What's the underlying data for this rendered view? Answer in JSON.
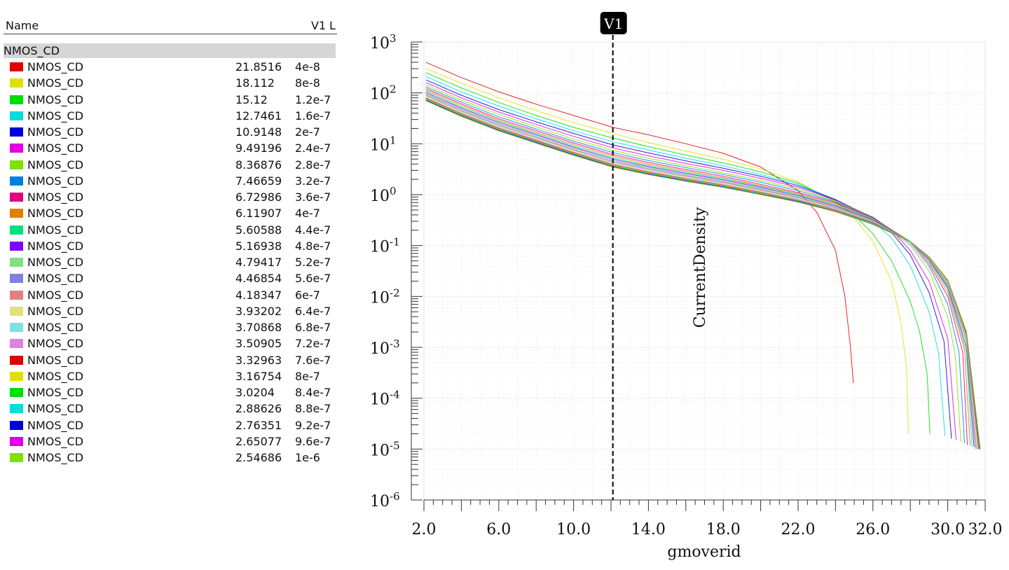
{
  "legend": {
    "header_name": "Name",
    "header_value": "V1",
    "header_l": "L",
    "group": "NMOS_CD",
    "rows": [
      {
        "name": "NMOS_CD",
        "value": "21.8516",
        "l": "4e-8",
        "color": "#e00000"
      },
      {
        "name": "NMOS_CD",
        "value": "18.112",
        "l": "8e-8",
        "color": "#e0e000"
      },
      {
        "name": "NMOS_CD",
        "value": "15.12",
        "l": "1.2e-7",
        "color": "#00dd00"
      },
      {
        "name": "NMOS_CD",
        "value": "12.7461",
        "l": "1.6e-7",
        "color": "#00dddd"
      },
      {
        "name": "NMOS_CD",
        "value": "10.9148",
        "l": "2e-7",
        "color": "#0000dd"
      },
      {
        "name": "NMOS_CD",
        "value": "9.49196",
        "l": "2.4e-7",
        "color": "#e000e0"
      },
      {
        "name": "NMOS_CD",
        "value": "8.36876",
        "l": "2.8e-7",
        "color": "#80e000"
      },
      {
        "name": "NMOS_CD",
        "value": "7.46659",
        "l": "3.2e-7",
        "color": "#0080e0"
      },
      {
        "name": "NMOS_CD",
        "value": "6.72986",
        "l": "3.6e-7",
        "color": "#e00080"
      },
      {
        "name": "NMOS_CD",
        "value": "6.11907",
        "l": "4e-7",
        "color": "#e08000"
      },
      {
        "name": "NMOS_CD",
        "value": "5.60588",
        "l": "4.4e-7",
        "color": "#00e080"
      },
      {
        "name": "NMOS_CD",
        "value": "5.16938",
        "l": "4.8e-7",
        "color": "#8000ff"
      },
      {
        "name": "NMOS_CD",
        "value": "4.79417",
        "l": "5.2e-7",
        "color": "#80e080"
      },
      {
        "name": "NMOS_CD",
        "value": "4.46854",
        "l": "5.6e-7",
        "color": "#8080e0"
      },
      {
        "name": "NMOS_CD",
        "value": "4.18347",
        "l": "6e-7",
        "color": "#e08080"
      },
      {
        "name": "NMOS_CD",
        "value": "3.93202",
        "l": "6.4e-7",
        "color": "#e0e080"
      },
      {
        "name": "NMOS_CD",
        "value": "3.70868",
        "l": "6.8e-7",
        "color": "#80e0e0"
      },
      {
        "name": "NMOS_CD",
        "value": "3.50905",
        "l": "7.2e-7",
        "color": "#e080e0"
      },
      {
        "name": "NMOS_CD",
        "value": "3.32963",
        "l": "7.6e-7",
        "color": "#e00000"
      },
      {
        "name": "NMOS_CD",
        "value": "3.16754",
        "l": "8e-7",
        "color": "#e0e000"
      },
      {
        "name": "NMOS_CD",
        "value": "3.0204",
        "l": "8.4e-7",
        "color": "#00dd00"
      },
      {
        "name": "NMOS_CD",
        "value": "2.88626",
        "l": "8.8e-7",
        "color": "#00dddd"
      },
      {
        "name": "NMOS_CD",
        "value": "2.76351",
        "l": "9.2e-7",
        "color": "#0000dd"
      },
      {
        "name": "NMOS_CD",
        "value": "2.65077",
        "l": "9.6e-7",
        "color": "#e000e0"
      },
      {
        "name": "NMOS_CD",
        "value": "2.54686",
        "l": "1e-6",
        "color": "#80e000"
      }
    ]
  },
  "chart_data": {
    "type": "line",
    "title": "",
    "xlabel": "gmoverid",
    "ylabel": "CurrentDensity",
    "xlim": [
      2.0,
      32.0
    ],
    "ylim": [
      1e-06,
      1000
    ],
    "yscale": "log",
    "grid": true,
    "x_ticks": [
      "2.0",
      "6.0",
      "10.0",
      "14.0",
      "18.0",
      "22.0",
      "26.0",
      "30.0",
      "32.0"
    ],
    "y_ticks": [
      {
        "base": "10",
        "exp": "3"
      },
      {
        "base": "10",
        "exp": "2"
      },
      {
        "base": "10",
        "exp": "1"
      },
      {
        "base": "10",
        "exp": "0"
      },
      {
        "base": "10",
        "exp": "-1"
      },
      {
        "base": "10",
        "exp": "-2"
      },
      {
        "base": "10",
        "exp": "-3"
      },
      {
        "base": "10",
        "exp": "-4"
      },
      {
        "base": "10",
        "exp": "-5"
      },
      {
        "base": "10",
        "exp": "-6"
      }
    ],
    "marker": {
      "label": "V1",
      "x": 12.1
    },
    "series": [
      {
        "x": [
          2.1,
          4,
          6,
          8,
          10,
          12.1,
          14,
          16,
          18,
          20,
          22,
          23,
          24,
          24.5,
          24.8,
          24.95
        ],
        "y": [
          400,
          200,
          105,
          60,
          36,
          21,
          15,
          10,
          6.5,
          3.5,
          1.2,
          0.45,
          0.08,
          0.01,
          0.001,
          0.0002
        ]
      },
      {
        "x": [
          2.1,
          4,
          6,
          8,
          10,
          12.1,
          14,
          16,
          18,
          20,
          22,
          24,
          25,
          26,
          27,
          27.5,
          27.8,
          27.9
        ],
        "y": [
          300,
          155,
          80,
          45,
          26,
          16,
          10.5,
          7.2,
          5,
          3.2,
          1.8,
          0.7,
          0.35,
          0.12,
          0.02,
          0.003,
          0.0004,
          2e-05
        ]
      },
      {
        "x": [
          2.1,
          4,
          6,
          8,
          10,
          12.1,
          14,
          16,
          18,
          20,
          22,
          24,
          25,
          26,
          27,
          28,
          28.5,
          28.9,
          29.05
        ],
        "y": [
          250,
          125,
          65,
          36,
          21,
          13,
          8.8,
          6,
          4.2,
          2.8,
          1.7,
          0.75,
          0.4,
          0.17,
          0.05,
          0.008,
          0.002,
          0.0003,
          2e-05
        ]
      },
      {
        "x": [
          2.1,
          4,
          6,
          8,
          10,
          12.1,
          14,
          16,
          18,
          20,
          22,
          24,
          26,
          27,
          28,
          29,
          29.5,
          29.85
        ],
        "y": [
          210,
          105,
          55,
          31,
          18,
          11,
          7.5,
          5.2,
          3.7,
          2.5,
          1.6,
          0.8,
          0.3,
          0.14,
          0.04,
          0.005,
          0.0008,
          1.8e-05
        ]
      },
      {
        "x": [
          2.1,
          4,
          6,
          8,
          10,
          12.1,
          14,
          16,
          18,
          20,
          22,
          24,
          26,
          27,
          28,
          29,
          29.8,
          30.2
        ],
        "y": [
          180,
          90,
          47,
          27,
          16,
          9.5,
          6.6,
          4.6,
          3.3,
          2.3,
          1.5,
          0.8,
          0.35,
          0.18,
          0.065,
          0.012,
          0.0013,
          1.6e-05
        ]
      },
      {
        "x": [
          2.1,
          4,
          6,
          8,
          10,
          12.1,
          14,
          16,
          18,
          20,
          22,
          24,
          26,
          27,
          28,
          29,
          30,
          30.45
        ],
        "y": [
          160,
          80,
          42,
          24,
          14,
          8.3,
          5.8,
          4.1,
          3,
          2.1,
          1.4,
          0.78,
          0.36,
          0.2,
          0.08,
          0.02,
          0.0015,
          1.5e-05
        ]
      },
      {
        "x": [
          2.1,
          4,
          6,
          8,
          10,
          12.1,
          14,
          16,
          18,
          20,
          22,
          24,
          26,
          28,
          29,
          30,
          30.4,
          30.7
        ],
        "y": [
          145,
          72,
          38,
          21.5,
          12.5,
          7.4,
          5.2,
          3.7,
          2.7,
          1.9,
          1.3,
          0.75,
          0.36,
          0.1,
          0.032,
          0.004,
          0.0007,
          1.4e-05
        ]
      },
      {
        "x": [
          2.1,
          4,
          6,
          8,
          10,
          12.1,
          14,
          16,
          18,
          20,
          22,
          24,
          26,
          28,
          29,
          30,
          30.6,
          30.9
        ],
        "y": [
          132,
          66,
          34,
          19.5,
          11.3,
          6.7,
          4.7,
          3.4,
          2.5,
          1.75,
          1.2,
          0.72,
          0.36,
          0.11,
          0.04,
          0.007,
          0.0008,
          1.3e-05
        ]
      },
      {
        "x": [
          2.1,
          4,
          6,
          8,
          10,
          12.1,
          14,
          16,
          18,
          20,
          22,
          24,
          26,
          28,
          29,
          30,
          30.8,
          31.05
        ],
        "y": [
          122,
          61,
          31,
          18,
          10.4,
          6.1,
          4.3,
          3.1,
          2.3,
          1.6,
          1.1,
          0.69,
          0.35,
          0.12,
          0.045,
          0.01,
          0.0008,
          1.2e-05
        ]
      },
      {
        "x": [
          2.1,
          4,
          6,
          8,
          10,
          12.1,
          14,
          16,
          18,
          20,
          22,
          24,
          26,
          28,
          29,
          30,
          30.9,
          31.2
        ],
        "y": [
          114,
          57,
          29,
          16.8,
          9.7,
          5.7,
          4,
          2.9,
          2.15,
          1.5,
          1.05,
          0.66,
          0.34,
          0.12,
          0.05,
          0.012,
          0.0009,
          1.2e-05
        ]
      },
      {
        "x": [
          2.1,
          4,
          6,
          8,
          10,
          12.1,
          14,
          16,
          18,
          20,
          22,
          24,
          26,
          28,
          29,
          30,
          31,
          31.3
        ],
        "y": [
          107,
          53,
          27.5,
          15.8,
          9.1,
          5.3,
          3.75,
          2.75,
          2.05,
          1.45,
          1,
          0.63,
          0.33,
          0.12,
          0.052,
          0.014,
          0.0008,
          1.1e-05
        ]
      },
      {
        "x": [
          2.1,
          4,
          6,
          8,
          10,
          12.1,
          14,
          16,
          18,
          20,
          22,
          24,
          26,
          28,
          29,
          30,
          31,
          31.4
        ],
        "y": [
          101,
          50,
          26,
          15,
          8.6,
          5,
          3.55,
          2.6,
          1.95,
          1.38,
          0.96,
          0.6,
          0.32,
          0.12,
          0.054,
          0.015,
          0.001,
          1.1e-05
        ]
      },
      {
        "x": [
          2.1,
          4,
          6,
          8,
          10,
          12.1,
          14,
          16,
          18,
          20,
          22,
          24,
          26,
          28,
          29,
          30,
          31,
          31.45
        ],
        "y": [
          96,
          47.5,
          24.7,
          14.2,
          8.2,
          4.75,
          3.4,
          2.48,
          1.86,
          1.32,
          0.92,
          0.58,
          0.31,
          0.12,
          0.055,
          0.016,
          0.0012,
          1.1e-05
        ]
      },
      {
        "x": [
          2.1,
          4,
          6,
          8,
          10,
          12.1,
          14,
          16,
          18,
          20,
          22,
          24,
          26,
          28,
          29,
          30,
          31,
          31.5
        ],
        "y": [
          92,
          45.5,
          23.6,
          13.6,
          7.8,
          4.55,
          3.25,
          2.38,
          1.78,
          1.27,
          0.89,
          0.56,
          0.3,
          0.12,
          0.056,
          0.017,
          0.0014,
          1e-05
        ]
      },
      {
        "x": [
          2.1,
          4,
          6,
          8,
          10,
          12.1,
          14,
          16,
          18,
          20,
          22,
          24,
          26,
          28,
          29,
          30,
          31,
          31.55
        ],
        "y": [
          88,
          43.5,
          22.6,
          13,
          7.5,
          4.35,
          3.12,
          2.29,
          1.72,
          1.23,
          0.86,
          0.55,
          0.3,
          0.12,
          0.057,
          0.018,
          0.0015,
          1e-05
        ]
      },
      {
        "x": [
          2.1,
          4,
          6,
          8,
          10,
          12.1,
          14,
          16,
          18,
          20,
          22,
          24,
          26,
          28,
          29,
          30,
          31,
          31.6
        ],
        "y": [
          85,
          42,
          21.8,
          12.5,
          7.2,
          4.2,
          3,
          2.21,
          1.66,
          1.19,
          0.83,
          0.53,
          0.29,
          0.12,
          0.058,
          0.019,
          0.0016,
          1e-05
        ]
      },
      {
        "x": [
          2.1,
          4,
          6,
          8,
          10,
          12.1,
          14,
          16,
          18,
          20,
          22,
          24,
          26,
          28,
          29,
          30,
          31,
          31.62
        ],
        "y": [
          82,
          40.5,
          21,
          12.1,
          6.95,
          4.05,
          2.9,
          2.14,
          1.61,
          1.15,
          0.81,
          0.52,
          0.29,
          0.12,
          0.058,
          0.019,
          0.0017,
          1e-05
        ]
      },
      {
        "x": [
          2.1,
          4,
          6,
          8,
          10,
          12.1,
          14,
          16,
          18,
          20,
          22,
          24,
          26,
          28,
          29,
          30,
          31,
          31.64
        ],
        "y": [
          80,
          39.5,
          20.5,
          11.8,
          6.75,
          3.95,
          2.83,
          2.08,
          1.57,
          1.12,
          0.79,
          0.51,
          0.28,
          0.12,
          0.059,
          0.02,
          0.0018,
          1e-05
        ]
      },
      {
        "x": [
          2.1,
          4,
          6,
          8,
          10,
          12.1,
          14,
          16,
          18,
          20,
          22,
          24,
          26,
          28,
          29,
          30,
          31,
          31.66
        ],
        "y": [
          78,
          38.5,
          20,
          11.5,
          6.6,
          3.85,
          2.76,
          2.03,
          1.53,
          1.1,
          0.77,
          0.5,
          0.28,
          0.12,
          0.059,
          0.02,
          0.0018,
          1e-05
        ]
      },
      {
        "x": [
          2.1,
          4,
          6,
          8,
          10,
          12.1,
          14,
          16,
          18,
          20,
          22,
          24,
          26,
          28,
          29,
          30,
          31,
          31.68
        ],
        "y": [
          76,
          37.5,
          19.5,
          11.2,
          6.45,
          3.76,
          2.7,
          1.99,
          1.5,
          1.08,
          0.76,
          0.49,
          0.27,
          0.12,
          0.059,
          0.02,
          0.0019,
          1e-05
        ]
      },
      {
        "x": [
          2.1,
          4,
          6,
          8,
          10,
          12.1,
          14,
          16,
          18,
          20,
          22,
          24,
          26,
          28,
          29,
          30,
          31,
          31.7
        ],
        "y": [
          74.5,
          36.8,
          19.1,
          11,
          6.3,
          3.68,
          2.64,
          1.95,
          1.47,
          1.06,
          0.75,
          0.48,
          0.27,
          0.12,
          0.06,
          0.021,
          0.0019,
          1e-05
        ]
      },
      {
        "x": [
          2.1,
          4,
          6,
          8,
          10,
          12.1,
          14,
          16,
          18,
          20,
          22,
          24,
          26,
          28,
          29,
          30,
          31,
          31.71
        ],
        "y": [
          73,
          36,
          18.7,
          10.8,
          6.2,
          3.61,
          2.59,
          1.91,
          1.44,
          1.04,
          0.74,
          0.48,
          0.27,
          0.12,
          0.06,
          0.021,
          0.002,
          1e-05
        ]
      },
      {
        "x": [
          2.1,
          4,
          6,
          8,
          10,
          12.1,
          14,
          16,
          18,
          20,
          22,
          24,
          26,
          28,
          29,
          30,
          31,
          31.72
        ],
        "y": [
          71.8,
          35.4,
          18.4,
          10.6,
          6.1,
          3.55,
          2.55,
          1.88,
          1.42,
          1.02,
          0.73,
          0.47,
          0.26,
          0.12,
          0.06,
          0.021,
          0.002,
          1e-05
        ]
      },
      {
        "x": [
          2.1,
          4,
          6,
          8,
          10,
          12.1,
          14,
          16,
          18,
          20,
          22,
          24,
          26,
          28,
          29,
          30,
          31,
          31.73
        ],
        "y": [
          70.6,
          34.8,
          18.1,
          10.4,
          6,
          3.5,
          2.51,
          1.85,
          1.4,
          1.01,
          0.72,
          0.47,
          0.26,
          0.12,
          0.06,
          0.021,
          0.002,
          1e-05
        ]
      },
      {
        "x": [
          2.1,
          4,
          6,
          8,
          10,
          12.1,
          14,
          16,
          18,
          20,
          22,
          24,
          26,
          28,
          29,
          30,
          31,
          31.74
        ],
        "y": [
          69.5,
          34.3,
          17.8,
          10.25,
          5.9,
          3.45,
          2.47,
          1.82,
          1.38,
          1,
          0.71,
          0.46,
          0.26,
          0.12,
          0.06,
          0.021,
          0.002,
          1e-05
        ]
      }
    ]
  }
}
